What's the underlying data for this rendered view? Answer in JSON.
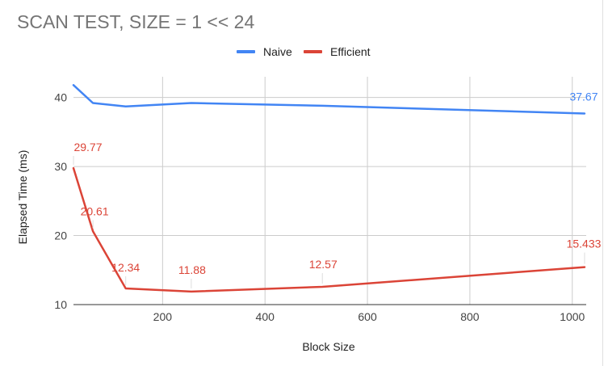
{
  "chart_data": {
    "type": "line",
    "title": "SCAN TEST, SIZE = 1 << 24",
    "xlabel": "Block Size",
    "ylabel": "Elapsed Time (ms)",
    "xlim": [
      26,
      1024
    ],
    "ylim": [
      10,
      43
    ],
    "xticks": [
      200,
      400,
      600,
      800,
      1000
    ],
    "yticks": [
      10,
      20,
      30,
      40
    ],
    "grid": true,
    "legend_position": "top",
    "series": [
      {
        "name": "Naive",
        "color": "#4285f4",
        "x": [
          26,
          64,
          128,
          256,
          512,
          1024
        ],
        "y": [
          41.8,
          39.2,
          38.7,
          39.2,
          38.8,
          37.67
        ],
        "labels": [
          null,
          null,
          null,
          null,
          null,
          "37.67"
        ]
      },
      {
        "name": "Efficient",
        "color": "#db4437",
        "x": [
          26,
          64,
          128,
          256,
          512,
          1024
        ],
        "y": [
          29.77,
          20.61,
          12.34,
          11.88,
          12.57,
          15.433
        ],
        "labels": [
          "29.77",
          "20.61",
          "12.34",
          "11.88",
          "12.57",
          "15.433"
        ]
      }
    ]
  }
}
